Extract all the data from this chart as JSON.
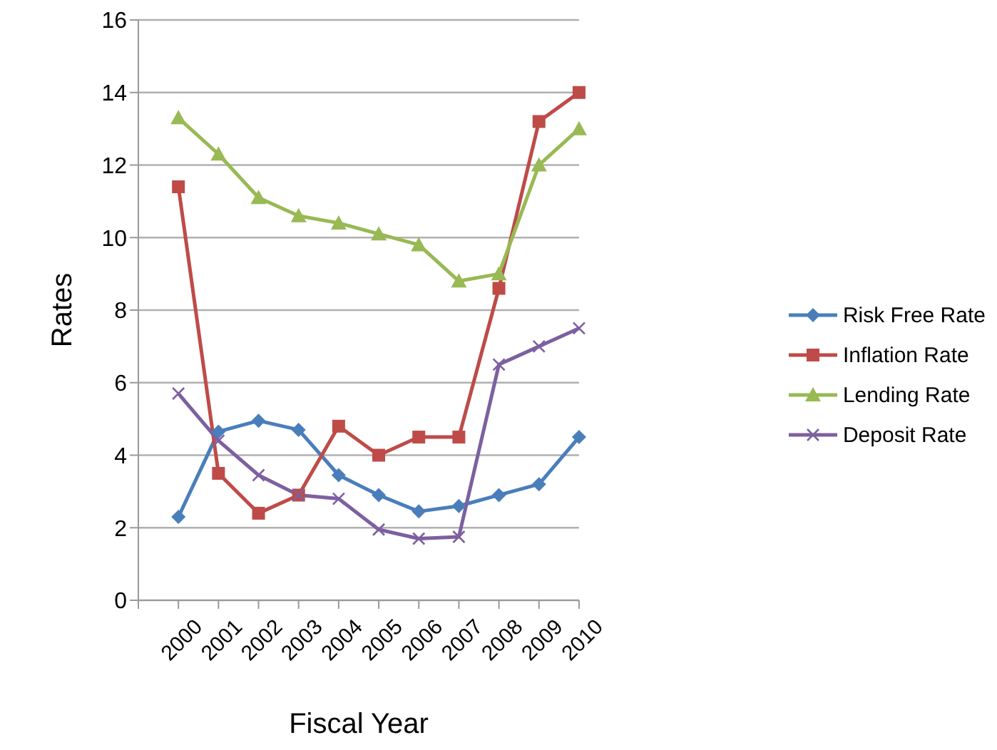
{
  "chart_data": {
    "type": "line",
    "xlabel": "Fiscal Year",
    "ylabel": "Rates",
    "categories": [
      null,
      "2000",
      "2001",
      "2002",
      "2003",
      "2004",
      "2005",
      "2006",
      "2007",
      "2008",
      "2009",
      "2010"
    ],
    "series": [
      {
        "name": "Risk Free Rate",
        "color": "#4a7ebb",
        "marker": "diamond",
        "values": [
          null,
          2.3,
          4.65,
          4.95,
          4.7,
          3.45,
          2.9,
          2.45,
          2.6,
          2.9,
          3.2,
          4.5
        ]
      },
      {
        "name": "Inflation Rate",
        "color": "#be4b48",
        "marker": "square",
        "values": [
          null,
          11.4,
          3.5,
          2.4,
          2.9,
          4.8,
          4.0,
          4.5,
          4.5,
          8.6,
          13.2,
          14.0
        ]
      },
      {
        "name": "Lending Rate",
        "color": "#98b954",
        "marker": "triangle",
        "values": [
          null,
          13.3,
          12.3,
          11.1,
          10.6,
          10.4,
          10.1,
          9.8,
          8.8,
          9.0,
          12.0,
          13.0
        ]
      },
      {
        "name": "Deposit Rate",
        "color": "#7d60a0",
        "marker": "cross",
        "values": [
          null,
          5.7,
          4.4,
          3.45,
          2.9,
          2.8,
          1.95,
          1.7,
          1.75,
          6.5,
          7.0,
          7.5
        ]
      }
    ],
    "ylim": [
      0,
      16
    ],
    "yticks": [
      0,
      2,
      4,
      6,
      8,
      10,
      12,
      14,
      16
    ],
    "grid": "y",
    "legend": "right",
    "line_style": "solid"
  }
}
